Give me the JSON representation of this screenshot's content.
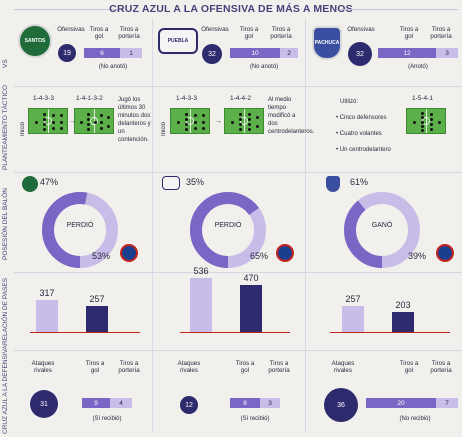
{
  "title": "CRUZ AZUL A LA OFENSIVA DE MÁS A MENOS",
  "sections": {
    "vs": "VS",
    "tactico": "PLANTEAMIENTO TÁCTICO",
    "posesion": "POSESIÓN DEL BALÓN",
    "pases": "RELACIÓN DE PASES",
    "defensiva": "CRUZ AZUL A LA DEFENSIVA"
  },
  "colors": {
    "dark": "#2e2a6e",
    "mid": "#7a66c4",
    "light": "#c7bde8",
    "field": "#5cb04a"
  },
  "headers": {
    "ofensivas": "Ofensivas",
    "tiros_gol": "Tiros a gol",
    "tiros_porteria": "Tiros a portería",
    "ataques_rivales": "Ataques rivales"
  },
  "matches": [
    {
      "rival": "Santos",
      "crest_icon": "santos-crest-icon",
      "offense": {
        "ofensivas": "19",
        "tiros_gol": "6",
        "tiros_porteria": "1",
        "note": "(No anotó)"
      },
      "tactic": {
        "formation_a": "1-4-3-3",
        "formation_b": "1-4-1-3-2",
        "inicio": "Inició",
        "note": "Jugó los últimos 30 minutos dos delanteros y un contención."
      },
      "possession": {
        "rival_pct": "47%",
        "cruz_pct": "53%",
        "result": "PERDIÓ",
        "cruz_value": 53
      },
      "passes": {
        "rival": "317",
        "cruz": "257",
        "rival_value": 317,
        "cruz_value": 257
      },
      "defense": {
        "ataques": "31",
        "tiros_gol": "9",
        "tiros_porteria": "4",
        "note": "(Sí recibió)"
      }
    },
    {
      "rival": "Puebla",
      "crest_icon": "puebla-crest-icon",
      "offense": {
        "ofensivas": "32",
        "tiros_gol": "10",
        "tiros_porteria": "2",
        "note": "(No anotó)"
      },
      "tactic": {
        "formation_a": "1-4-3-3",
        "formation_b": "1-4-4-2",
        "inicio": "Inició",
        "note": "Al medio tiempo modificó a dos centrodelanteros."
      },
      "possession": {
        "rival_pct": "35%",
        "cruz_pct": "65%",
        "result": "PERDIÓ",
        "cruz_value": 65
      },
      "passes": {
        "rival": "536",
        "cruz": "470",
        "rival_value": 536,
        "cruz_value": 470
      },
      "defense": {
        "ataques": "12",
        "tiros_gol": "8",
        "tiros_porteria": "3",
        "note": "(Sí recibió)"
      }
    },
    {
      "rival": "Pachuca",
      "crest_icon": "pachuca-crest-icon",
      "offense": {
        "ofensivas": "32",
        "tiros_gol": "12",
        "tiros_porteria": "3",
        "note": "(Anotó)"
      },
      "tactic": {
        "formation_b": "1-5-4-1",
        "utilizo": "Utilizó:",
        "bullets": [
          "Cinco defensores",
          "Cuatro volantes",
          "Un centrodelantero"
        ]
      },
      "possession": {
        "rival_pct": "61%",
        "cruz_pct": "39%",
        "result": "GANÓ",
        "cruz_value": 39
      },
      "passes": {
        "rival": "257",
        "cruz": "203",
        "rival_value": 257,
        "cruz_value": 203
      },
      "defense": {
        "ataques": "36",
        "tiros_gol": "20",
        "tiros_porteria": "7",
        "note": "(No recibió)"
      }
    }
  ]
}
